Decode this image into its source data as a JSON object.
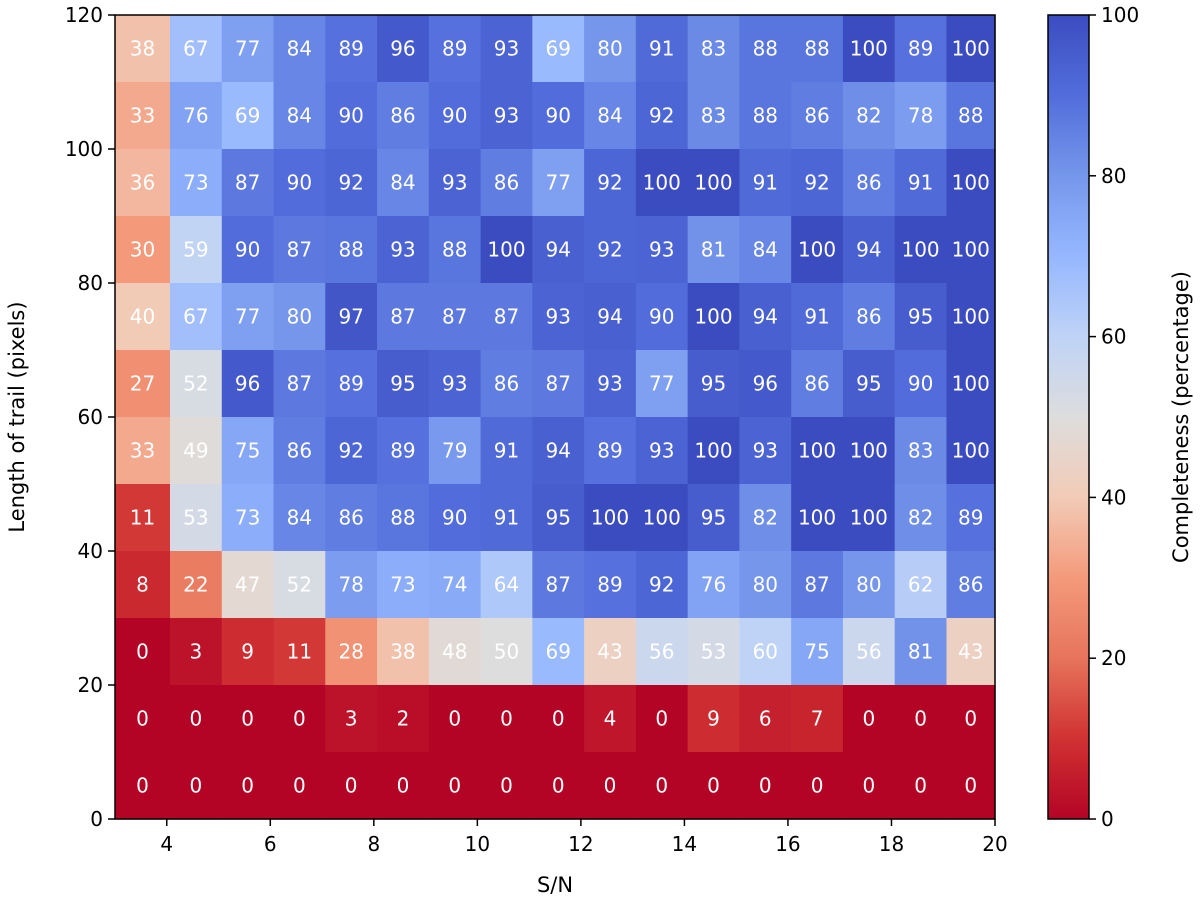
{
  "chart_data": {
    "type": "heatmap",
    "xlabel": "S/N",
    "ylabel": "Length of trail (pixels)",
    "colorbar_label": "Completeness (percentage)",
    "colormap": "coolwarm_r",
    "color_range": [
      0,
      100
    ],
    "xlim": [
      3,
      20
    ],
    "ylim": [
      0,
      120
    ],
    "x_ticks": [
      4,
      6,
      8,
      10,
      12,
      14,
      16,
      18,
      20
    ],
    "y_ticks": [
      0,
      20,
      40,
      60,
      80,
      100,
      120
    ],
    "colorbar_ticks": [
      0,
      20,
      40,
      60,
      80,
      100
    ],
    "x_edges": [
      3,
      4.0625,
      5.0625,
      6.0625,
      7.0625,
      8.0625,
      9.0625,
      10.0625,
      11.0625,
      12.0625,
      13.0625,
      14.0625,
      15.0625,
      16.0625,
      17.0625,
      18.0625,
      19.0625,
      20
    ],
    "y_edges": [
      0,
      10,
      20,
      30,
      40,
      50,
      60,
      70,
      80,
      90,
      100,
      110,
      120
    ],
    "values_top_to_bottom": [
      [
        38,
        67,
        77,
        84,
        89,
        96,
        89,
        93,
        69,
        80,
        91,
        83,
        88,
        88,
        100,
        89,
        100
      ],
      [
        33,
        76,
        69,
        84,
        90,
        86,
        90,
        93,
        90,
        84,
        92,
        83,
        88,
        86,
        82,
        78,
        88
      ],
      [
        36,
        73,
        87,
        90,
        92,
        84,
        93,
        86,
        77,
        92,
        100,
        100,
        91,
        92,
        86,
        91,
        100
      ],
      [
        30,
        59,
        90,
        87,
        88,
        93,
        88,
        100,
        94,
        92,
        93,
        81,
        84,
        100,
        94,
        100,
        100
      ],
      [
        40,
        67,
        77,
        80,
        97,
        87,
        87,
        87,
        93,
        94,
        90,
        100,
        94,
        91,
        86,
        95,
        100
      ],
      [
        27,
        52,
        96,
        87,
        89,
        95,
        93,
        86,
        87,
        93,
        77,
        95,
        96,
        86,
        95,
        90,
        100
      ],
      [
        33,
        49,
        75,
        86,
        92,
        89,
        79,
        91,
        94,
        89,
        93,
        100,
        93,
        100,
        100,
        83,
        100
      ],
      [
        11,
        53,
        73,
        84,
        86,
        88,
        90,
        91,
        95,
        100,
        100,
        95,
        82,
        100,
        100,
        82,
        89
      ],
      [
        8,
        22,
        47,
        52,
        78,
        73,
        74,
        64,
        87,
        89,
        92,
        76,
        80,
        87,
        80,
        62,
        86
      ],
      [
        0,
        3,
        9,
        11,
        28,
        38,
        48,
        50,
        69,
        43,
        56,
        53,
        60,
        75,
        56,
        81,
        43
      ],
      [
        0,
        0,
        0,
        0,
        3,
        2,
        0,
        0,
        0,
        4,
        0,
        9,
        6,
        7,
        0,
        0,
        0
      ],
      [
        0,
        0,
        0,
        0,
        0,
        0,
        0,
        0,
        0,
        0,
        0,
        0,
        0,
        0,
        0,
        0,
        0
      ]
    ]
  }
}
